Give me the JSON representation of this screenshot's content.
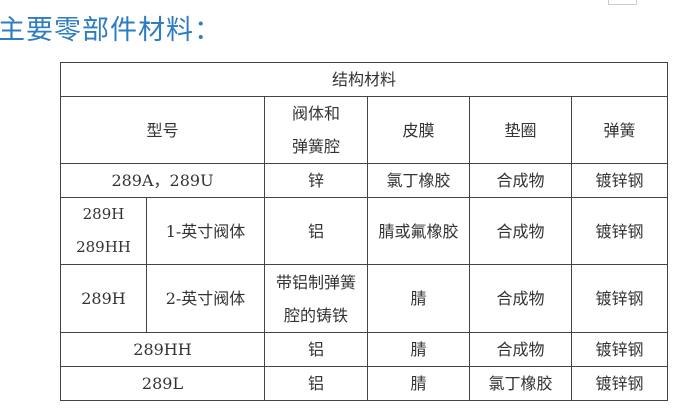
{
  "title": "主要零部件材料：",
  "table": {
    "caption": "结构材料",
    "headers": {
      "model": "型号",
      "body_line1": "阀体和",
      "body_line2": "弹簧腔",
      "diaphragm": "皮膜",
      "gasket": "垫圈",
      "spring": "弹簧"
    },
    "rows": [
      {
        "model": "289A，289U",
        "body": "锌",
        "diaphragm": "氯丁橡胶",
        "gasket": "合成物",
        "spring": "镀锌钢"
      },
      {
        "model_line1": "289H",
        "model_line2": "289HH",
        "size": "1-英寸阀体",
        "body": "铝",
        "diaphragm": "腈或氟橡胶",
        "gasket": "合成物",
        "spring": "镀锌钢"
      },
      {
        "model": "289H",
        "size": "2-英寸阀体",
        "body_line1": "带铝制弹簧",
        "body_line2": "腔的铸铁",
        "diaphragm": "腈",
        "gasket": "合成物",
        "spring": "镀锌钢"
      },
      {
        "model": "289HH",
        "body": "铝",
        "diaphragm": "腈",
        "gasket": "合成物",
        "spring": "镀锌钢"
      },
      {
        "model": "289L",
        "body": "铝",
        "diaphragm": "腈",
        "gasket": "氯丁橡胶",
        "spring": "镀锌钢"
      }
    ]
  }
}
